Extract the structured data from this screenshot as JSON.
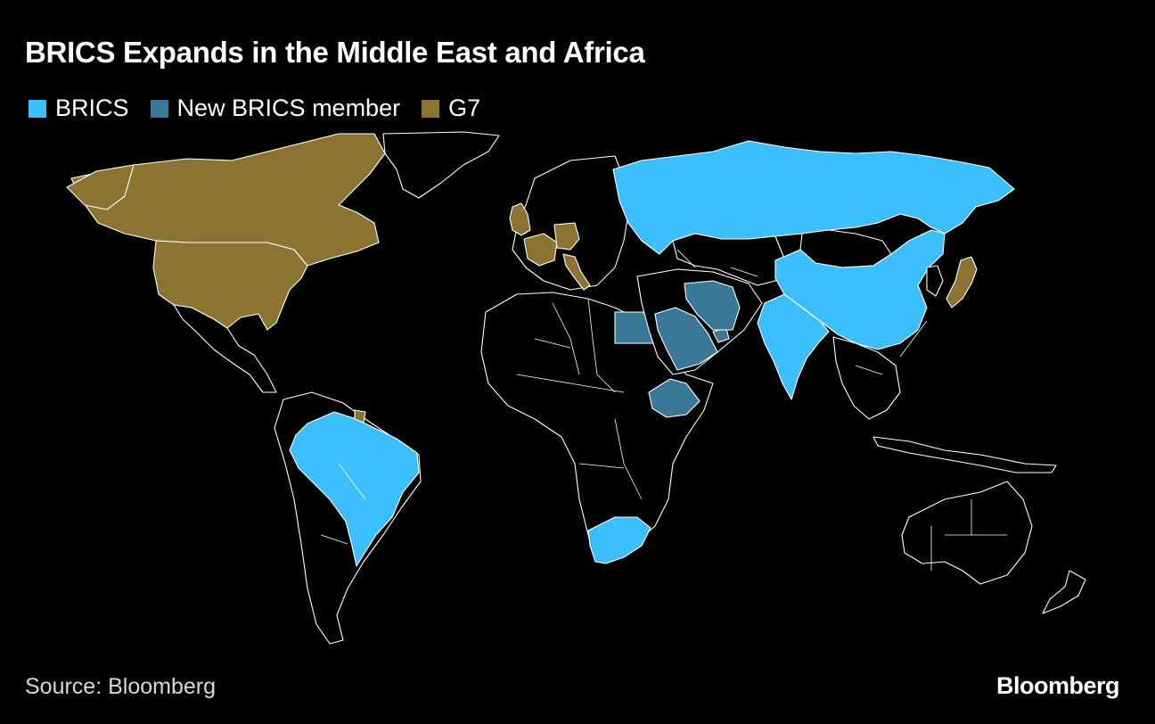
{
  "title": "BRICS Expands in the Middle East and Africa",
  "legend": [
    {
      "label": "BRICS",
      "color": "#3cbfff"
    },
    {
      "label": "New BRICS member",
      "color": "#3a7897"
    },
    {
      "label": "G7",
      "color": "#8b7332"
    }
  ],
  "source": "Source: Bloomberg",
  "brand": "Bloomberg",
  "colors": {
    "background": "#000000",
    "outline": "#ffffff",
    "brics": "#3cbfff",
    "new_member": "#3a7897",
    "g7": "#8b7332",
    "other": "#000000"
  }
}
